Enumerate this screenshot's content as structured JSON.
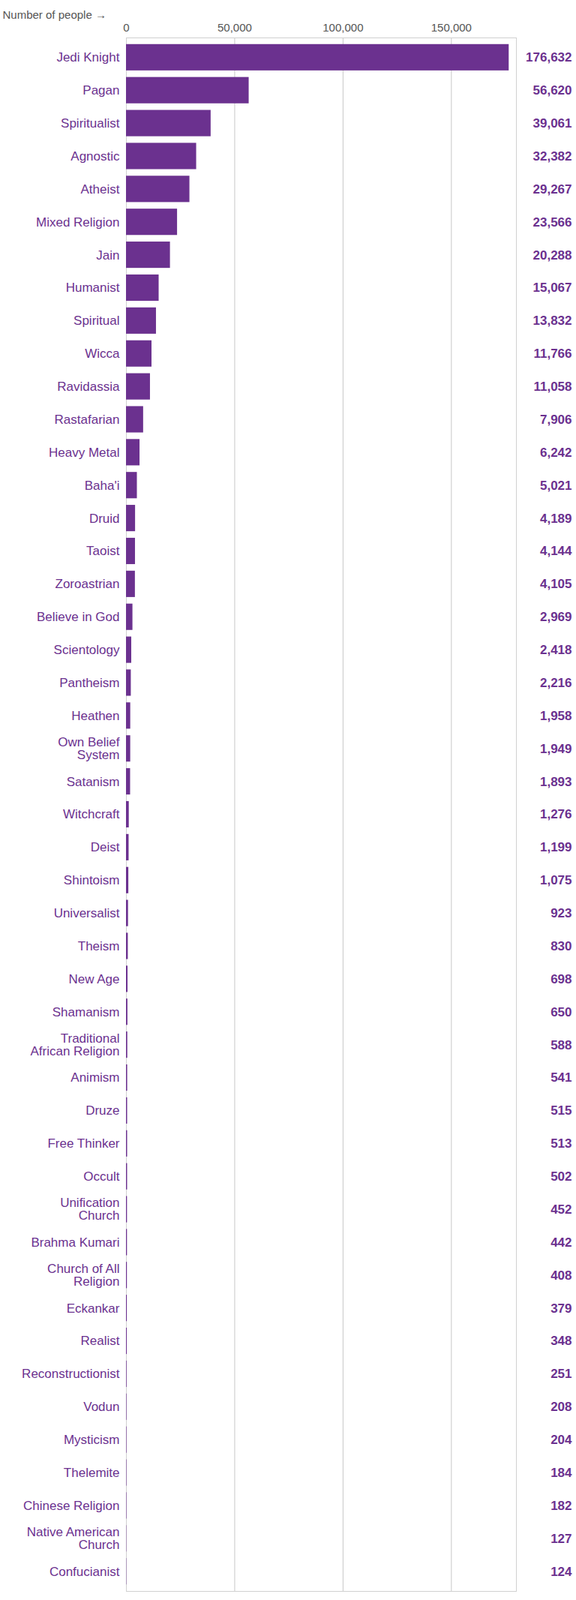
{
  "chart_data": {
    "type": "bar",
    "orientation": "horizontal",
    "x_label": "Number of people",
    "categories": [
      "Jedi Knight",
      "Pagan",
      "Spiritualist",
      "Agnostic",
      "Atheist",
      "Mixed Religion",
      "Jain",
      "Humanist",
      "Spiritual",
      "Wicca",
      "Ravidassia",
      "Rastafarian",
      "Heavy Metal",
      "Baha'i",
      "Druid",
      "Taoist",
      "Zoroastrian",
      "Believe in God",
      "Scientology",
      "Pantheism",
      "Heathen",
      "Own Belief System",
      "Satanism",
      "Witchcraft",
      "Deist",
      "Shintoism",
      "Universalist",
      "Theism",
      "New Age",
      "Shamanism",
      "Traditional African Religion",
      "Animism",
      "Druze",
      "Free Thinker",
      "Occult",
      "Unification Church",
      "Brahma Kumari",
      "Church of All Religion",
      "Eckankar",
      "Realist",
      "Reconstructionist",
      "Vodun",
      "Mysticism",
      "Thelemite",
      "Chinese Religion",
      "Native American Church",
      "Confucianist"
    ],
    "values": [
      176632,
      56620,
      39061,
      32382,
      29267,
      23566,
      20288,
      15067,
      13832,
      11766,
      11058,
      7906,
      6242,
      5021,
      4189,
      4144,
      4105,
      2969,
      2418,
      2216,
      1958,
      1949,
      1893,
      1276,
      1199,
      1075,
      923,
      830,
      698,
      650,
      588,
      541,
      515,
      513,
      502,
      452,
      442,
      408,
      379,
      348,
      251,
      208,
      204,
      184,
      182,
      127,
      124
    ],
    "value_labels": [
      "176,632",
      "56,620",
      "39,061",
      "32,382",
      "29,267",
      "23,566",
      "20,288",
      "15,067",
      "13,832",
      "11,766",
      "11,058",
      "7,906",
      "6,242",
      "5,021",
      "4,189",
      "4,144",
      "4,105",
      "2,969",
      "2,418",
      "2,216",
      "1,958",
      "1,949",
      "1,893",
      "1,276",
      "1,199",
      "1,075",
      "923",
      "830",
      "698",
      "650",
      "588",
      "541",
      "515",
      "513",
      "502",
      "452",
      "442",
      "408",
      "379",
      "348",
      "251",
      "208",
      "204",
      "184",
      "182",
      "127",
      "124"
    ],
    "data_labels": true,
    "color": "#6b318f",
    "xlim": [
      0,
      180000
    ],
    "xticks": [
      0,
      {
        "value": 50000,
        "label": "50,000"
      },
      {
        "value": 100000,
        "label": "100,000"
      },
      {
        "value": 150000,
        "label": "150,000"
      }
    ],
    "grid": true
  }
}
